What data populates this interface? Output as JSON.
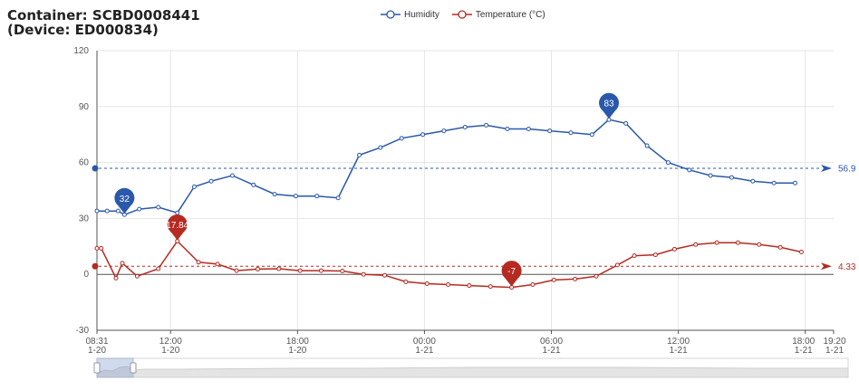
{
  "header": {
    "title_line1": "Container: SCBD0008441",
    "title_line2": "(Device: ED000834)"
  },
  "colors": {
    "humidity": "#2a58ab",
    "temperature": "#b52a22",
    "grid": "#e6e6e6",
    "axis": "#555555"
  },
  "chart_data": {
    "type": "line",
    "x_unit": "hours since 08:31 1-20",
    "legend": {
      "position": "top-center"
    },
    "grid": true,
    "ylim": [
      -30,
      120
    ],
    "yticks": [
      -30,
      0,
      30,
      60,
      90,
      120
    ],
    "xlim": [
      0,
      34.82
    ],
    "xticks": [
      {
        "x": 0,
        "time": "08:31",
        "date": "1-20"
      },
      {
        "x": 3.48,
        "time": "12:00",
        "date": "1-20"
      },
      {
        "x": 9.48,
        "time": "18:00",
        "date": "1-20"
      },
      {
        "x": 15.48,
        "time": "00:00",
        "date": "1-21"
      },
      {
        "x": 21.48,
        "time": "06:00",
        "date": "1-21"
      },
      {
        "x": 27.48,
        "time": "12:00",
        "date": "1-21"
      },
      {
        "x": 33.48,
        "time": "18:00",
        "date": "1-21"
      },
      {
        "x": 34.82,
        "time": "19:20",
        "date": "1-21"
      }
    ],
    "series": [
      {
        "name": "Humidity",
        "points": [
          [
            0,
            34
          ],
          [
            0.48,
            34
          ],
          [
            1,
            34
          ],
          [
            1.3,
            32
          ],
          [
            2,
            35
          ],
          [
            2.9,
            36
          ],
          [
            3.8,
            33
          ],
          [
            4.6,
            47
          ],
          [
            5.4,
            50
          ],
          [
            6.4,
            53
          ],
          [
            7.4,
            48
          ],
          [
            8.4,
            43
          ],
          [
            9.4,
            42
          ],
          [
            10.4,
            42
          ],
          [
            11.4,
            41
          ],
          [
            12.4,
            64
          ],
          [
            13.4,
            68
          ],
          [
            14.4,
            73
          ],
          [
            15.4,
            75
          ],
          [
            16.4,
            77
          ],
          [
            17.4,
            79
          ],
          [
            18.4,
            80
          ],
          [
            19.4,
            78
          ],
          [
            20.4,
            78
          ],
          [
            21.4,
            77
          ],
          [
            22.4,
            76
          ],
          [
            23.4,
            75
          ],
          [
            24.2,
            83
          ],
          [
            25,
            81
          ],
          [
            26,
            69
          ],
          [
            27,
            60
          ],
          [
            28,
            56
          ],
          [
            29,
            53
          ],
          [
            30,
            52
          ],
          [
            31,
            50
          ],
          [
            32,
            49
          ],
          [
            33,
            49
          ]
        ],
        "average": 56.9,
        "max_marker": {
          "x": 24.2,
          "value": "83"
        },
        "min_marker": {
          "x": 1.3,
          "value": "32"
        },
        "average_label": "56.9"
      },
      {
        "name": "Temperature (°C)",
        "points": [
          [
            0,
            14
          ],
          [
            0.2,
            14
          ],
          [
            0.9,
            -2
          ],
          [
            1.2,
            6
          ],
          [
            1.9,
            -1
          ],
          [
            2.9,
            3
          ],
          [
            3.8,
            17.84
          ],
          [
            4.8,
            6.5
          ],
          [
            5.7,
            5.5
          ],
          [
            6.6,
            2
          ],
          [
            7.6,
            2.8
          ],
          [
            8.6,
            3
          ],
          [
            9.6,
            2
          ],
          [
            10.6,
            2
          ],
          [
            11.6,
            1.8
          ],
          [
            12.6,
            0
          ],
          [
            13.6,
            -0.5
          ],
          [
            14.6,
            -4
          ],
          [
            15.6,
            -5
          ],
          [
            16.6,
            -5.5
          ],
          [
            17.6,
            -6
          ],
          [
            18.6,
            -6.5
          ],
          [
            19.6,
            -7
          ],
          [
            20.6,
            -5.5
          ],
          [
            21.6,
            -3
          ],
          [
            22.6,
            -2.5
          ],
          [
            23.6,
            -1
          ],
          [
            24.6,
            5
          ],
          [
            25.4,
            10
          ],
          [
            26.4,
            10.5
          ],
          [
            27.3,
            13.5
          ],
          [
            28.3,
            16
          ],
          [
            29.3,
            17
          ],
          [
            30.3,
            17
          ],
          [
            31.3,
            16
          ],
          [
            32.3,
            14.5
          ],
          [
            33.3,
            12
          ]
        ],
        "average": 4.33,
        "max_marker": {
          "x": 3.8,
          "value": "17.84"
        },
        "min_marker": {
          "x": 19.6,
          "value": "-7"
        },
        "average_label": "4.33"
      }
    ]
  }
}
